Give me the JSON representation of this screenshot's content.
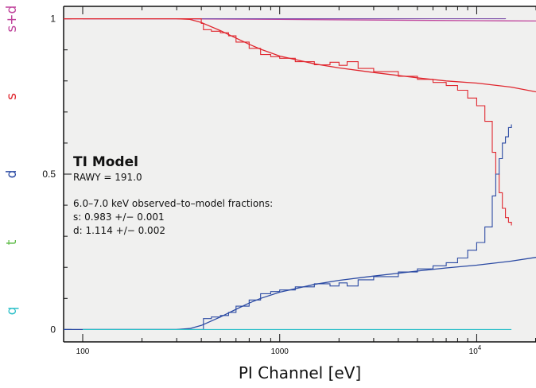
{
  "chart_data": {
    "type": "line",
    "xlabel": "PI Channel [eV]",
    "ylabel": "",
    "xscale": "log",
    "xlim": [
      80,
      20000
    ],
    "ylim": [
      -0.04,
      1.04
    ],
    "x_ticks": [
      {
        "value": 100,
        "label": "100"
      },
      {
        "value": 1000,
        "label": "1000"
      },
      {
        "value": 10000,
        "label": "10^4"
      }
    ],
    "y_ticks": [
      {
        "value": 0,
        "label": "0"
      },
      {
        "value": 0.5,
        "label": "0.5"
      },
      {
        "value": 1,
        "label": "1"
      }
    ],
    "side_labels": [
      {
        "text": "s+d",
        "y": 1.0,
        "color": "#c0449c"
      },
      {
        "text": "s",
        "y": 0.75,
        "color": "#e0262e"
      },
      {
        "text": "d",
        "y": 0.5,
        "color": "#2b4aa3"
      },
      {
        "text": "t",
        "y": 0.28,
        "color": "#5dbb46"
      },
      {
        "text": "q",
        "y": 0.06,
        "color": "#2ec0c9"
      }
    ],
    "annotation": {
      "title": "TI Model",
      "lines": [
        "RAWY = 191.0",
        "",
        "6.0–7.0 keV observed–to–model fractions:",
        "s: 0.983 +/− 0.001",
        "d: 1.114 +/− 0.002"
      ]
    },
    "series": [
      {
        "color": "#c0449c",
        "style": "model",
        "x": [
          80,
          300,
          1000,
          3000,
          10000,
          20000
        ],
        "y": [
          1.0,
          1.0,
          0.998,
          0.996,
          0.994,
          0.993
        ]
      },
      {
        "color": "#7a4aa8",
        "style": "data",
        "x": [
          100,
          400,
          1000,
          5000,
          10000,
          14000
        ],
        "y": [
          1.0,
          1.0,
          1.0,
          1.0,
          1.0,
          0.999
        ]
      },
      {
        "color": "#e0262e",
        "style": "model",
        "x": [
          80,
          300,
          350,
          400,
          500,
          600,
          700,
          800,
          1000,
          1500,
          2000,
          3000,
          5000,
          7000,
          10000,
          15000,
          20000
        ],
        "y": [
          1.0,
          1.0,
          0.998,
          0.988,
          0.962,
          0.938,
          0.918,
          0.902,
          0.88,
          0.855,
          0.842,
          0.827,
          0.81,
          0.8,
          0.793,
          0.78,
          0.765
        ]
      },
      {
        "color": "#e0262e",
        "style": "data",
        "x": [
          300,
          380,
          400,
          410,
          450,
          500,
          550,
          600,
          700,
          800,
          900,
          1000,
          1200,
          1500,
          1800,
          2000,
          2200,
          2500,
          3000,
          4000,
          5000,
          6000,
          7000,
          8000,
          9000,
          10000,
          11000,
          12000,
          12500,
          13000,
          13500,
          14000,
          14500,
          15000
        ],
        "y": [
          1.0,
          1.0,
          0.985,
          0.965,
          0.96,
          0.955,
          0.945,
          0.925,
          0.905,
          0.885,
          0.878,
          0.873,
          0.862,
          0.852,
          0.86,
          0.85,
          0.862,
          0.84,
          0.83,
          0.815,
          0.805,
          0.795,
          0.785,
          0.77,
          0.745,
          0.72,
          0.67,
          0.57,
          0.5,
          0.44,
          0.39,
          0.36,
          0.345,
          0.335
        ]
      },
      {
        "color": "#2b4aa3",
        "style": "model",
        "x": [
          80,
          300,
          350,
          400,
          500,
          600,
          700,
          800,
          1000,
          1500,
          2000,
          3000,
          5000,
          7000,
          10000,
          15000,
          20000
        ],
        "y": [
          0.0,
          0.0,
          0.003,
          0.013,
          0.04,
          0.065,
          0.085,
          0.1,
          0.12,
          0.145,
          0.158,
          0.172,
          0.188,
          0.198,
          0.207,
          0.22,
          0.232
        ]
      },
      {
        "color": "#2b4aa3",
        "style": "data",
        "x": [
          300,
          400,
          410,
          450,
          500,
          550,
          600,
          700,
          800,
          900,
          1000,
          1200,
          1500,
          1800,
          2000,
          2200,
          2500,
          3000,
          4000,
          5000,
          6000,
          7000,
          8000,
          9000,
          10000,
          11000,
          12000,
          12500,
          13000,
          13500,
          14000,
          14500,
          15000
        ],
        "y": [
          0.0,
          0.0,
          0.035,
          0.04,
          0.045,
          0.055,
          0.075,
          0.095,
          0.115,
          0.122,
          0.127,
          0.137,
          0.147,
          0.14,
          0.15,
          0.14,
          0.16,
          0.17,
          0.185,
          0.195,
          0.205,
          0.215,
          0.23,
          0.255,
          0.28,
          0.33,
          0.43,
          0.5,
          0.55,
          0.6,
          0.62,
          0.65,
          0.66
        ]
      },
      {
        "color": "#2ec0c9",
        "style": "data",
        "x": [
          100,
          1000,
          10000,
          15000
        ],
        "y": [
          0.0,
          0.0,
          0.0,
          0.0
        ]
      }
    ]
  }
}
